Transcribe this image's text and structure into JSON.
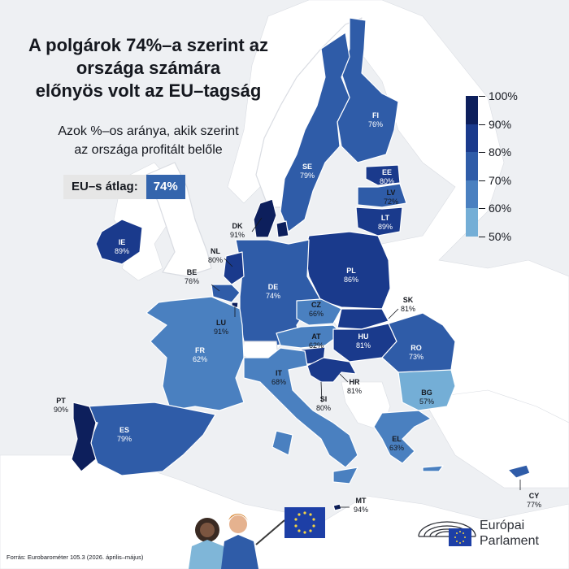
{
  "header": {
    "title_lines": [
      "A polgárok 74%–a szerint az",
      "országa számára",
      "előnyös volt az EU–tagság"
    ],
    "subtitle_lines": [
      "Azok %–os aránya, akik szerint",
      "az országa profitált belőle"
    ]
  },
  "average": {
    "label": "EU–s átlag:",
    "value": "74%"
  },
  "legend": {
    "ticks": [
      "100%",
      "90%",
      "80%",
      "70%",
      "60%",
      "50%"
    ],
    "colors": [
      "#0d1f5c",
      "#1a3a8c",
      "#2f5ca8",
      "#4a80c0",
      "#74aed6",
      "#a6d4e6"
    ]
  },
  "countries": [
    {
      "code": "FI",
      "value": "76%"
    },
    {
      "code": "SE",
      "value": "79%"
    },
    {
      "code": "EE",
      "value": "80%"
    },
    {
      "code": "LV",
      "value": "72%"
    },
    {
      "code": "LT",
      "value": "89%"
    },
    {
      "code": "DK",
      "value": "91%"
    },
    {
      "code": "IE",
      "value": "89%"
    },
    {
      "code": "NL",
      "value": "80%"
    },
    {
      "code": "BE",
      "value": "76%"
    },
    {
      "code": "PL",
      "value": "86%"
    },
    {
      "code": "DE",
      "value": "74%"
    },
    {
      "code": "CZ",
      "value": "66%"
    },
    {
      "code": "SK",
      "value": "81%"
    },
    {
      "code": "LU",
      "value": "91%"
    },
    {
      "code": "AT",
      "value": "62%"
    },
    {
      "code": "HU",
      "value": "81%"
    },
    {
      "code": "RO",
      "value": "73%"
    },
    {
      "code": "FR",
      "value": "62%"
    },
    {
      "code": "IT",
      "value": "68%"
    },
    {
      "code": "HR",
      "value": "81%"
    },
    {
      "code": "SI",
      "value": "80%"
    },
    {
      "code": "BG",
      "value": "57%"
    },
    {
      "code": "PT",
      "value": "90%"
    },
    {
      "code": "ES",
      "value": "79%"
    },
    {
      "code": "EL",
      "value": "63%"
    },
    {
      "code": "MT",
      "value": "94%"
    },
    {
      "code": "CY",
      "value": "77%"
    }
  ],
  "colors": {
    "c50": "#a6d4e6",
    "c60": "#74aed6",
    "c70": "#4a80c0",
    "c80": "#2f5ca8",
    "c90": "#1a3a8c",
    "c100": "#0d1f5c",
    "nonEU": "#ffffff",
    "sea": "#eef0f3"
  },
  "source": "Forrás: Eurobarométer 105.3 (2026. április–május)",
  "brand": {
    "line1": "Európai",
    "line2": "Parlament"
  }
}
